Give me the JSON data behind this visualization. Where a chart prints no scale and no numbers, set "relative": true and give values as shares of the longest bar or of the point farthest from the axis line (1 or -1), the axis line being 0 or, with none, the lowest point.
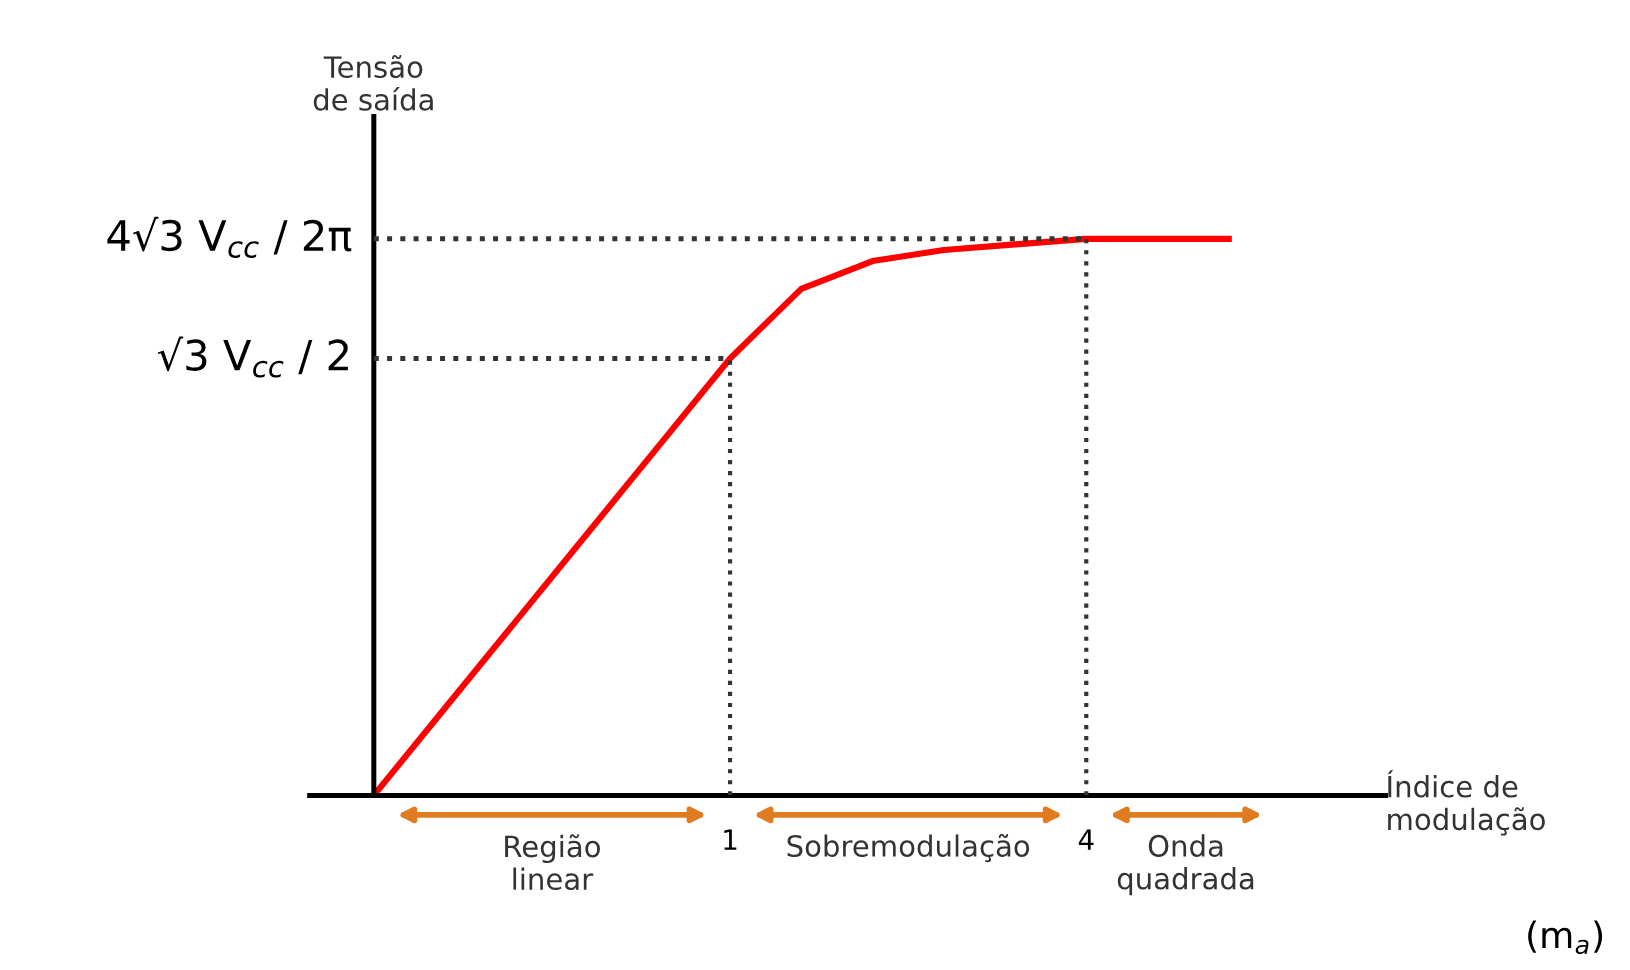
{
  "chart_data": {
    "type": "line",
    "relative": true,
    "xlabel": "Índice de\nmodulação",
    "ylabel": "Tensão\nde saída",
    "categories": [
      null,
      null,
      null,
      null,
      null,
      "1",
      null,
      null,
      null,
      null,
      "4",
      null,
      null
    ],
    "series": [
      {
        "color": "#ff0000",
        "values": [
          0,
          0.157,
          0.314,
          0.471,
          0.628,
          0.785,
          0.91,
          0.96,
          0.98,
          0.99,
          1,
          1,
          1
        ]
      }
    ],
    "ref_lines": [
      {
        "axis": "y",
        "value": 0.785,
        "label": "√3 V$_{cc}$ / 2",
        "line_style": "dotted",
        "color": "#333333"
      },
      {
        "axis": "y",
        "value": 1,
        "label": "4√3 V$_{cc}$ / 2π",
        "line_style": "dotted",
        "color": "#333333"
      },
      {
        "axis": "x",
        "value": "1",
        "line_style": "dotted",
        "color": "#333333"
      },
      {
        "axis": "x",
        "value": "4",
        "line_style": "dotted",
        "color": "#333333"
      }
    ],
    "annotations": [
      "Região\nlinear",
      "Sobremodulação",
      "Onda\nquadrada",
      "(m$_{a}$)"
    ],
    "grid": false,
    "legend": false,
    "marker": "none",
    "line_style": "solid"
  }
}
